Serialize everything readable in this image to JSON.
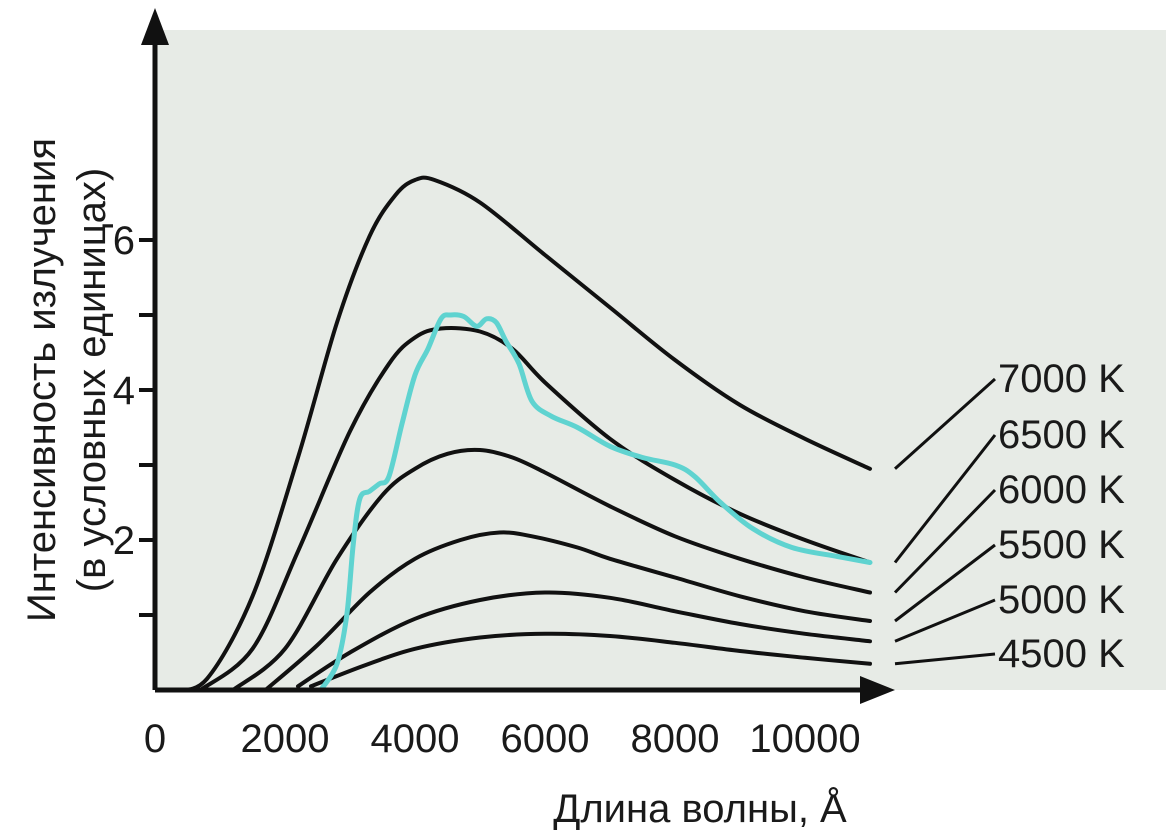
{
  "chart_data": {
    "type": "line",
    "xlabel": "Длина волны, Å",
    "ylabel_line1": "Интенсивность излучения",
    "ylabel_line2": "(в условных единицах)",
    "xlim": [
      0,
      11000
    ],
    "ylim": [
      0,
      7.2
    ],
    "x_ticks": [
      0,
      2000,
      4000,
      6000,
      8000,
      10000
    ],
    "x_tick_labels": [
      "0",
      "2000",
      "4000",
      "6000",
      "8000",
      "10000"
    ],
    "y_ticks": [
      1,
      2,
      3,
      4,
      5,
      6
    ],
    "y_tick_labels": [
      "",
      "2",
      "",
      "4",
      "",
      "6"
    ],
    "series": [
      {
        "name": "7000 K",
        "color": "#111111",
        "x": [
          300,
          800,
          1500,
          2200,
          2800,
          3300,
          3700,
          4000,
          4300,
          5000,
          6000,
          7000,
          8000,
          9000,
          10000,
          11000
        ],
        "y": [
          0,
          0.15,
          1.25,
          3.1,
          4.9,
          6.05,
          6.6,
          6.8,
          6.8,
          6.5,
          5.8,
          5.1,
          4.4,
          3.8,
          3.35,
          2.95
        ]
      },
      {
        "name": "6500 K",
        "color": "#111111",
        "x": [
          700,
          1500,
          2200,
          3000,
          3600,
          4000,
          4400,
          5000,
          5500,
          6000,
          7000,
          8000,
          9000,
          10000,
          11000
        ],
        "y": [
          0,
          0.55,
          1.85,
          3.45,
          4.35,
          4.7,
          4.82,
          4.78,
          4.55,
          4.1,
          3.35,
          2.8,
          2.35,
          2.0,
          1.7
        ]
      },
      {
        "name": "6000 K",
        "color": "#111111",
        "x": [
          1200,
          2000,
          2800,
          3500,
          4000,
          4500,
          5000,
          5500,
          6000,
          7000,
          8000,
          9000,
          10000,
          11000
        ],
        "y": [
          0,
          0.55,
          1.75,
          2.6,
          2.95,
          3.15,
          3.2,
          3.1,
          2.9,
          2.45,
          2.05,
          1.75,
          1.5,
          1.3
        ]
      },
      {
        "name": "5500 K",
        "color": "#111111",
        "x": [
          1700,
          2500,
          3300,
          4000,
          4700,
          5300,
          5800,
          6500,
          7000,
          8000,
          9000,
          10000,
          11000
        ],
        "y": [
          0,
          0.6,
          1.3,
          1.75,
          2.0,
          2.1,
          2.05,
          1.9,
          1.75,
          1.5,
          1.25,
          1.05,
          0.92
        ]
      },
      {
        "name": "5000 K",
        "color": "#111111",
        "x": [
          2200,
          3000,
          4000,
          5000,
          6000,
          7000,
          8000,
          9000,
          10000,
          11000
        ],
        "y": [
          0.05,
          0.5,
          0.95,
          1.2,
          1.3,
          1.23,
          1.05,
          0.88,
          0.75,
          0.65
        ]
      },
      {
        "name": "4500 K",
        "color": "#111111",
        "x": [
          2400,
          3200,
          4000,
          5000,
          6000,
          7000,
          8000,
          9000,
          10000,
          11000
        ],
        "y": [
          0.05,
          0.32,
          0.55,
          0.7,
          0.75,
          0.72,
          0.63,
          0.52,
          0.43,
          0.35
        ]
      },
      {
        "name": "",
        "color": "#5fd3d0",
        "x": [
          2550,
          2800,
          2950,
          3050,
          3150,
          3300,
          3450,
          3600,
          3800,
          4000,
          4200,
          4400,
          4550,
          4750,
          4950,
          5100,
          5250,
          5400,
          5600,
          5800,
          6100,
          6500,
          7000,
          7500,
          8000,
          8300,
          8700,
          9200,
          9800,
          10500,
          11000
        ],
        "y": [
          0,
          0.35,
          1.0,
          1.95,
          2.55,
          2.65,
          2.75,
          2.85,
          3.55,
          4.2,
          4.55,
          4.95,
          5.0,
          4.98,
          4.85,
          4.95,
          4.9,
          4.65,
          4.35,
          3.85,
          3.65,
          3.5,
          3.25,
          3.1,
          3.0,
          2.85,
          2.5,
          2.15,
          1.9,
          1.78,
          1.7
        ]
      }
    ]
  }
}
